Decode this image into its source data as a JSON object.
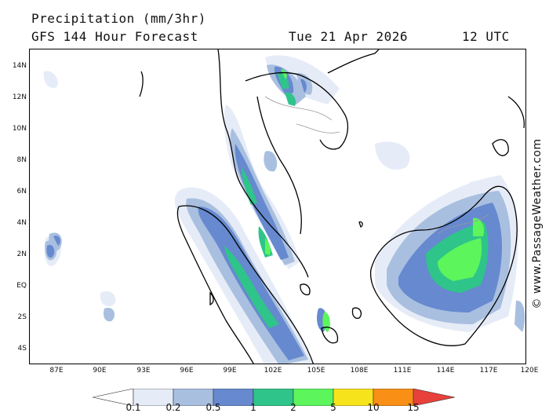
{
  "header": {
    "title": "Precipitation (mm/3hr)",
    "subtitle": "GFS 144 Hour Forecast",
    "date": "Tue 21 Apr 2026",
    "time": "12 UTC"
  },
  "map": {
    "latitude_labels": [
      "14N",
      "12N",
      "10N",
      "8N",
      "6N",
      "4N",
      "2N",
      "EQ",
      "2S",
      "4S"
    ],
    "longitude_labels": [
      "87E",
      "90E",
      "93E",
      "96E",
      "99E",
      "102E",
      "105E",
      "108E",
      "111E",
      "114E",
      "117E",
      "120E"
    ],
    "credit": "© www.PassageWeather.com",
    "colors": {
      "coast": "#000000",
      "ocean": "#ffffff",
      "borders": "#999999"
    }
  },
  "legend": {
    "labels": [
      "0.1",
      "0.2",
      "0.5",
      "1",
      "2",
      "5",
      "10",
      "15"
    ],
    "colors": [
      "#ffffff",
      "#e6ecf7",
      "#a9bfe0",
      "#6689cf",
      "#2fc48a",
      "#5cf55c",
      "#f7e31b",
      "#f98f14",
      "#e8403b"
    ]
  }
}
